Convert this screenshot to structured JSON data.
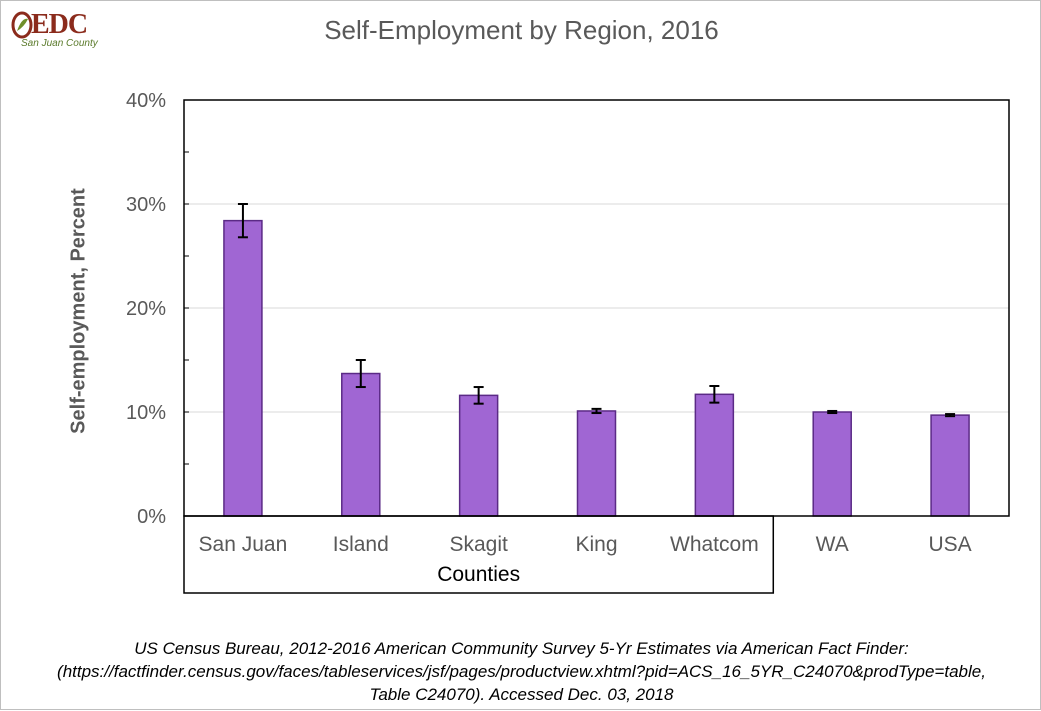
{
  "logo": {
    "text": "EDC",
    "subtitle": "San Juan County"
  },
  "chart_data": {
    "type": "bar",
    "title": "Self-Employment by Region, 2016",
    "xlabel": "",
    "ylabel": "Self-employment, Percent",
    "categories": [
      "San Juan",
      "Island",
      "Skagit",
      "King",
      "Whatcom",
      "WA",
      "USA"
    ],
    "values": [
      28.4,
      13.7,
      11.6,
      10.1,
      11.7,
      10.0,
      9.7
    ],
    "error_low": [
      26.8,
      12.4,
      10.8,
      9.9,
      10.9,
      9.9,
      9.6
    ],
    "error_high": [
      30.0,
      15.0,
      12.4,
      10.3,
      12.5,
      10.1,
      9.8
    ],
    "ylim": [
      0,
      40
    ],
    "yticks": [
      0,
      10,
      20,
      30,
      40
    ],
    "ytick_labels": [
      "0%",
      "10%",
      "20%",
      "30%",
      "40%"
    ],
    "group_label": "Counties",
    "group_size": 5,
    "grid": true,
    "bar_color": "#a066d3",
    "bar_edge_color": "#5b2a86"
  },
  "source": {
    "line1": "US Census Bureau, 2012-2016 American Community Survey 5-Yr Estimates via American Fact Finder:",
    "line2": "(https://factfinder.census.gov/faces/tableservices/jsf/pages/productview.xhtml?pid=ACS_16_5YR_C24070&prodType=table,",
    "line3": "Table C24070). Accessed Dec. 03, 2018"
  }
}
